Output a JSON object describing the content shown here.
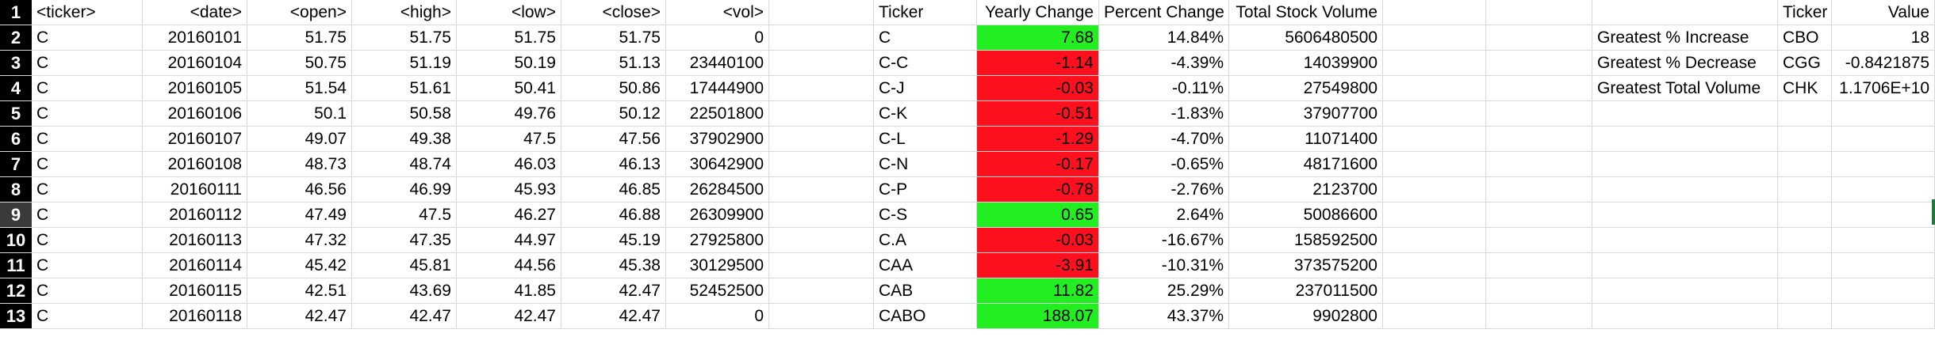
{
  "rows": [
    {
      "n": "1",
      "a": "<ticker>",
      "b": "<date>",
      "c": "<open>",
      "d": "<high>",
      "e": "<low>",
      "f": "<close>",
      "g": "<vol>",
      "h": "",
      "i": "",
      "j": "Ticker",
      "k": "Yearly Change",
      "l": "Percent Change",
      "m": "Total Stock Volume",
      "n2": "",
      "o": "",
      "p": "Ticker",
      "q": "Value",
      "color": ""
    },
    {
      "n": "2",
      "a": "C",
      "b": "20160101",
      "c": "51.75",
      "d": "51.75",
      "e": "51.75",
      "f": "51.75",
      "g": "0",
      "h": "",
      "i": "",
      "j": "C",
      "k": "7.68",
      "l": "14.84%",
      "m": "5606480500",
      "n2": "",
      "o": "Greatest % Increase",
      "p": "CBO",
      "q": "18",
      "color": "green"
    },
    {
      "n": "3",
      "a": "C",
      "b": "20160104",
      "c": "50.75",
      "d": "51.19",
      "e": "50.19",
      "f": "51.13",
      "g": "23440100",
      "h": "",
      "i": "",
      "j": "C-C",
      "k": "-1.14",
      "l": "-4.39%",
      "m": "14039900",
      "n2": "",
      "o": "Greatest % Decrease",
      "p": "CGG",
      "q": "-0.8421875",
      "color": "red"
    },
    {
      "n": "4",
      "a": "C",
      "b": "20160105",
      "c": "51.54",
      "d": "51.61",
      "e": "50.41",
      "f": "50.86",
      "g": "17444900",
      "h": "",
      "i": "",
      "j": "C-J",
      "k": "-0.03",
      "l": "-0.11%",
      "m": "27549800",
      "n2": "",
      "o": "Greatest Total Volume",
      "p": "CHK",
      "q": "1.1706E+10",
      "color": "red"
    },
    {
      "n": "5",
      "a": "C",
      "b": "20160106",
      "c": "50.1",
      "d": "50.58",
      "e": "49.76",
      "f": "50.12",
      "g": "22501800",
      "h": "",
      "i": "",
      "j": "C-K",
      "k": "-0.51",
      "l": "-1.83%",
      "m": "37907700",
      "n2": "",
      "o": "",
      "p": "",
      "q": "",
      "color": "red"
    },
    {
      "n": "6",
      "a": "C",
      "b": "20160107",
      "c": "49.07",
      "d": "49.38",
      "e": "47.5",
      "f": "47.56",
      "g": "37902900",
      "h": "",
      "i": "",
      "j": "C-L",
      "k": "-1.29",
      "l": "-4.70%",
      "m": "11071400",
      "n2": "",
      "o": "",
      "p": "",
      "q": "",
      "color": "red"
    },
    {
      "n": "7",
      "a": "C",
      "b": "20160108",
      "c": "48.73",
      "d": "48.74",
      "e": "46.03",
      "f": "46.13",
      "g": "30642900",
      "h": "",
      "i": "",
      "j": "C-N",
      "k": "-0.17",
      "l": "-0.65%",
      "m": "48171600",
      "n2": "",
      "o": "",
      "p": "",
      "q": "",
      "color": "red"
    },
    {
      "n": "8",
      "a": "C",
      "b": "20160111",
      "c": "46.56",
      "d": "46.99",
      "e": "45.93",
      "f": "46.85",
      "g": "26284500",
      "h": "",
      "i": "",
      "j": "C-P",
      "k": "-0.78",
      "l": "-2.76%",
      "m": "2123700",
      "n2": "",
      "o": "",
      "p": "",
      "q": "",
      "color": "red"
    },
    {
      "n": "9",
      "a": "C",
      "b": "20160112",
      "c": "47.49",
      "d": "47.5",
      "e": "46.27",
      "f": "46.88",
      "g": "26309900",
      "h": "",
      "i": "",
      "j": "C-S",
      "k": "0.65",
      "l": "2.64%",
      "m": "50086600",
      "n2": "",
      "o": "",
      "p": "",
      "q": "",
      "color": "green"
    },
    {
      "n": "10",
      "a": "C",
      "b": "20160113",
      "c": "47.32",
      "d": "47.35",
      "e": "44.97",
      "f": "45.19",
      "g": "27925800",
      "h": "",
      "i": "",
      "j": "C.A",
      "k": "-0.03",
      "l": "-16.67%",
      "m": "158592500",
      "n2": "",
      "o": "",
      "p": "",
      "q": "",
      "color": "red"
    },
    {
      "n": "11",
      "a": "C",
      "b": "20160114",
      "c": "45.42",
      "d": "45.81",
      "e": "44.56",
      "f": "45.38",
      "g": "30129500",
      "h": "",
      "i": "",
      "j": "CAA",
      "k": "-3.91",
      "l": "-10.31%",
      "m": "373575200",
      "n2": "",
      "o": "",
      "p": "",
      "q": "",
      "color": "red"
    },
    {
      "n": "12",
      "a": "C",
      "b": "20160115",
      "c": "42.51",
      "d": "43.69",
      "e": "41.85",
      "f": "42.47",
      "g": "52452500",
      "h": "",
      "i": "",
      "j": "CAB",
      "k": "11.82",
      "l": "25.29%",
      "m": "237011500",
      "n2": "",
      "o": "",
      "p": "",
      "q": "",
      "color": "green"
    },
    {
      "n": "13",
      "a": "C",
      "b": "20160118",
      "c": "42.47",
      "d": "42.47",
      "e": "42.47",
      "f": "42.47",
      "g": "0",
      "h": "",
      "i": "",
      "j": "CABO",
      "k": "188.07",
      "l": "43.37%",
      "m": "9902800",
      "n2": "",
      "o": "",
      "p": "",
      "q": "",
      "color": "green"
    }
  ],
  "colors": {
    "green": "#22ee22",
    "red": "#ff101e",
    "header_bg": "#000000"
  }
}
